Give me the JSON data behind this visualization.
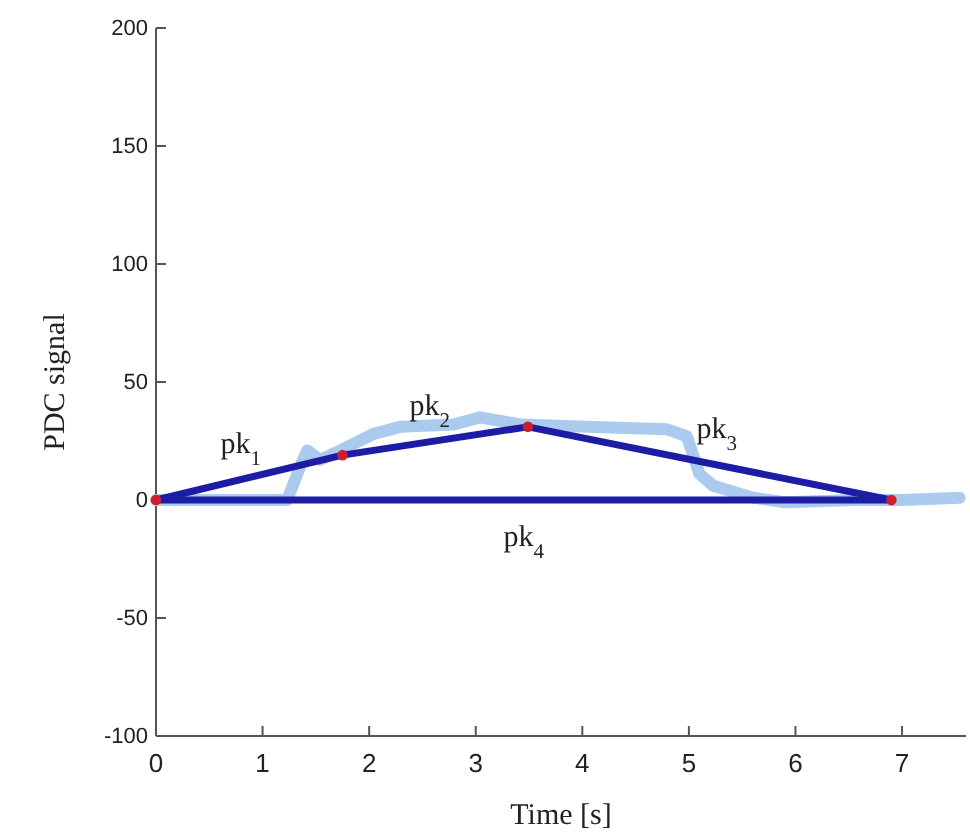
{
  "chart_data": {
    "type": "line",
    "xlabel": "Time [s]",
    "ylabel": "PDC signal",
    "xlim": [
      0,
      7.6
    ],
    "xticks": [
      0,
      1,
      2,
      3,
      4,
      5,
      6,
      7
    ],
    "ylim": [
      -100,
      200
    ],
    "yticks": [
      -100,
      -50,
      0,
      50,
      100,
      150,
      200
    ],
    "grid": false,
    "series": [
      {
        "color": "#aacbee",
        "x": [
          0,
          0.6,
          1.23,
          1.36,
          1.42,
          1.54,
          1.73,
          2.04,
          2.29,
          2.79,
          3.04,
          3.42,
          4.04,
          4.79,
          4.98,
          5.1,
          5.23,
          5.6,
          5.91,
          6.54,
          7.0,
          7.54
        ],
        "values": [
          0,
          0,
          0,
          15,
          21,
          17,
          21,
          28,
          31,
          32,
          35,
          32,
          31,
          30,
          27,
          11,
          6,
          1,
          -1,
          0,
          0,
          1
        ]
      },
      {
        "name": "pk$_{1}$",
        "color": "#1c1ca4",
        "x": [
          0,
          1.75
        ],
        "values": [
          0,
          19
        ]
      },
      {
        "name": "pk$_{2}$",
        "color": "#1c1ca4",
        "x": [
          1.75,
          3.49
        ],
        "values": [
          19,
          31
        ]
      },
      {
        "name": "pk$_{3}$",
        "color": "#1c1ca4",
        "x": [
          3.49,
          6.9
        ],
        "values": [
          31,
          0
        ]
      },
      {
        "name": "pk$_{4}$",
        "color": "#1c1ca4",
        "x": [
          0,
          6.9
        ],
        "values": [
          0,
          0
        ]
      },
      {
        "type": "scatter",
        "color": "#cc1f2e",
        "marker": "circle",
        "x": [
          0,
          1.75,
          3.49,
          6.9
        ],
        "values": [
          0,
          19,
          31,
          0
        ]
      }
    ]
  }
}
